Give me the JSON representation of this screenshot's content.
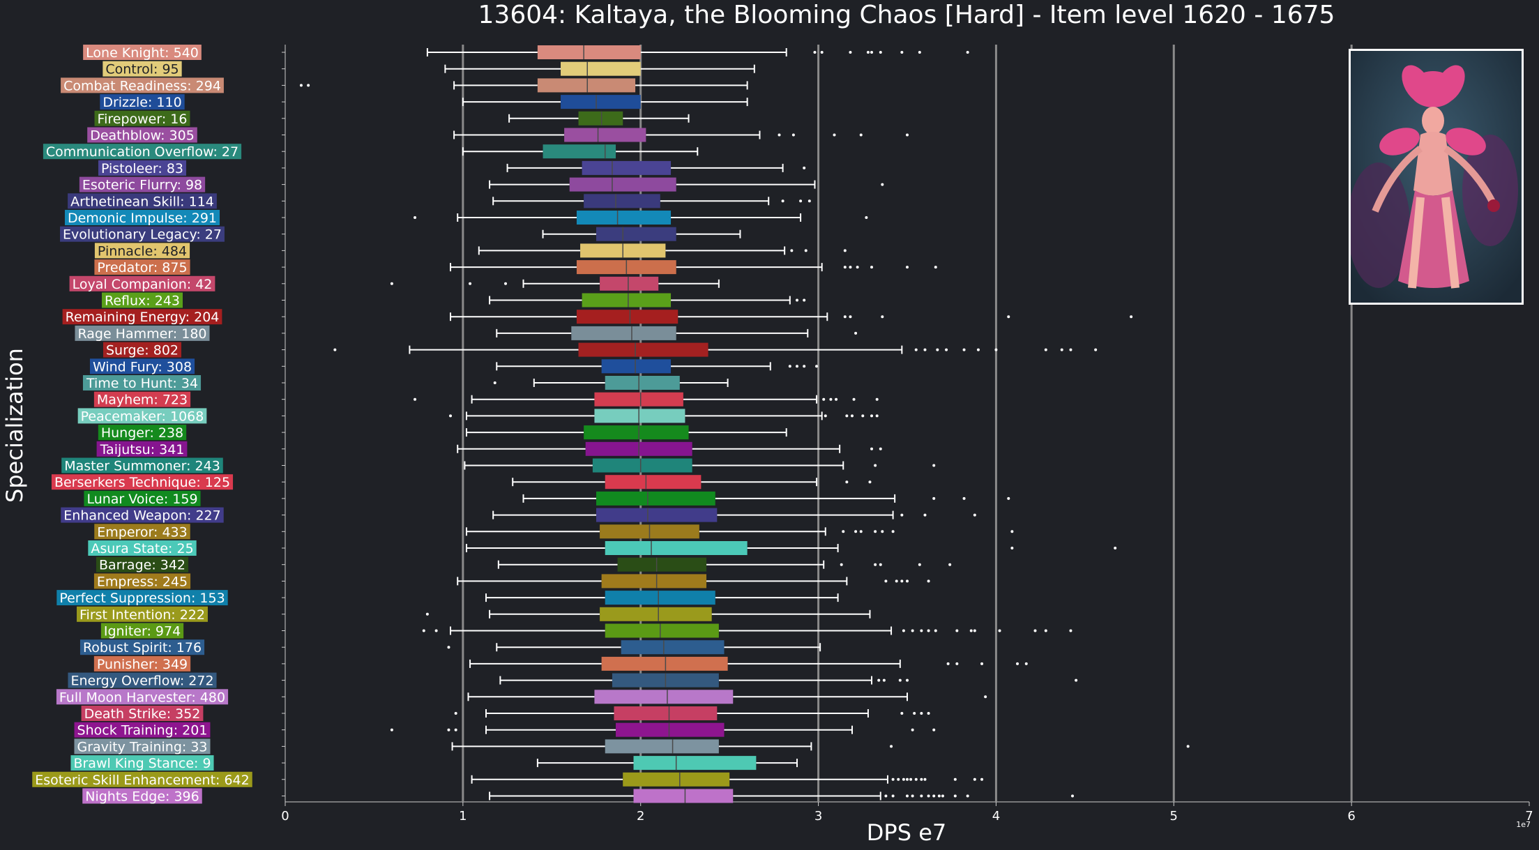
{
  "chart_data": {
    "type": "boxplot",
    "orientation": "horizontal",
    "title": "13604: Kaltaya, the Blooming Chaos [Hard] - Item level 1620 - 1675",
    "xlabel": "DPS e7",
    "ylabel": "Specialization",
    "x_offset_label": "1e7",
    "xlim": [
      0,
      7
    ],
    "xticks": [
      "0",
      "1",
      "2",
      "3",
      "4",
      "5",
      "6",
      "7"
    ],
    "grid": "vertical",
    "portrait_icon": "boss-portrait-pink-flower-demon",
    "colors": {
      "background": "#1f2126",
      "grid": "#8a8a8a",
      "text": "#ffffff",
      "whisker": "#ffffff"
    },
    "series": [
      {
        "label": "Lone Knight: 540",
        "color": "#d98a7e",
        "whislo": 0.8,
        "q1": 1.42,
        "med": 1.68,
        "q3": 2.0,
        "whishi": 2.82,
        "fliers": [
          2.98,
          3.02,
          3.18,
          3.28,
          3.3,
          3.35,
          3.47,
          3.57,
          3.84
        ]
      },
      {
        "label": "Control: 95",
        "color": "#e2cc7a",
        "whislo": 0.9,
        "q1": 1.55,
        "med": 1.7,
        "q3": 2.0,
        "whishi": 2.64,
        "fliers": []
      },
      {
        "label": "Combat Readiness: 294",
        "color": "#c98a74",
        "whislo": 0.95,
        "q1": 1.42,
        "med": 1.7,
        "q3": 1.97,
        "whishi": 2.6,
        "fliers": [
          0.09,
          0.13
        ]
      },
      {
        "label": "Drizzle: 110",
        "color": "#1f4d99",
        "whislo": 1.0,
        "q1": 1.55,
        "med": 1.75,
        "q3": 2.0,
        "whishi": 2.6,
        "fliers": []
      },
      {
        "label": "Firepower: 16",
        "color": "#3d6b1a",
        "whislo": 1.26,
        "q1": 1.65,
        "med": 1.78,
        "q3": 1.9,
        "whishi": 2.27,
        "fliers": []
      },
      {
        "label": "Deathblow: 305",
        "color": "#9a4fa0",
        "whislo": 0.95,
        "q1": 1.57,
        "med": 1.76,
        "q3": 2.03,
        "whishi": 2.67,
        "fliers": [
          2.78,
          2.86,
          3.09,
          3.24,
          3.5
        ]
      },
      {
        "label": "Communication Overflow: 27",
        "color": "#2a8a7d",
        "whislo": 1.0,
        "q1": 1.45,
        "med": 1.8,
        "q3": 1.86,
        "whishi": 2.32,
        "fliers": []
      },
      {
        "label": "Pistoleer: 83",
        "color": "#4a4494",
        "whislo": 1.25,
        "q1": 1.67,
        "med": 1.84,
        "q3": 2.17,
        "whishi": 2.8,
        "fliers": [
          2.92
        ]
      },
      {
        "label": "Esoteric Flurry: 98",
        "color": "#8e4a9e",
        "whislo": 1.15,
        "q1": 1.6,
        "med": 1.84,
        "q3": 2.2,
        "whishi": 2.98,
        "fliers": [
          3.36
        ]
      },
      {
        "label": "Arthetinean Skill: 114",
        "color": "#3a3a7c",
        "whislo": 1.17,
        "q1": 1.68,
        "med": 1.86,
        "q3": 2.11,
        "whishi": 2.72,
        "fliers": [
          2.8,
          2.9,
          2.95
        ]
      },
      {
        "label": "Demonic Impulse: 291",
        "color": "#1389b8",
        "whislo": 0.97,
        "q1": 1.64,
        "med": 1.87,
        "q3": 2.17,
        "whishi": 2.9,
        "fliers": [
          0.73,
          3.27
        ]
      },
      {
        "label": "Evolutionary Legacy: 27",
        "color": "#3b3d7e",
        "whislo": 1.45,
        "q1": 1.75,
        "med": 1.9,
        "q3": 2.2,
        "whishi": 2.56,
        "fliers": []
      },
      {
        "label": "Pinnacle: 484",
        "color": "#e1c56e",
        "whislo": 1.09,
        "q1": 1.66,
        "med": 1.9,
        "q3": 2.14,
        "whishi": 2.81,
        "fliers": [
          2.85,
          2.93,
          3.15
        ]
      },
      {
        "label": "Predator: 875",
        "color": "#cc6f4c",
        "whislo": 0.93,
        "q1": 1.64,
        "med": 1.92,
        "q3": 2.2,
        "whishi": 3.02,
        "fliers": [
          3.15,
          3.18,
          3.22,
          3.3,
          3.5,
          3.66
        ]
      },
      {
        "label": "Loyal Companion: 42",
        "color": "#c4476b",
        "whislo": 1.34,
        "q1": 1.77,
        "med": 1.93,
        "q3": 2.1,
        "whishi": 2.44,
        "fliers": [
          0.6,
          1.04,
          1.24
        ]
      },
      {
        "label": "Reflux: 243",
        "color": "#5aa01a",
        "whislo": 1.15,
        "q1": 1.67,
        "med": 1.93,
        "q3": 2.17,
        "whishi": 2.84,
        "fliers": [
          2.88,
          2.92
        ]
      },
      {
        "label": "Remaining Energy: 204",
        "color": "#a51f1f",
        "whislo": 0.93,
        "q1": 1.64,
        "med": 1.94,
        "q3": 2.21,
        "whishi": 3.05,
        "fliers": [
          3.15,
          3.18,
          3.36,
          4.07,
          4.76
        ]
      },
      {
        "label": "Rage Hammer: 180",
        "color": "#7a8e99",
        "whislo": 1.19,
        "q1": 1.61,
        "med": 1.95,
        "q3": 2.2,
        "whishi": 2.94,
        "fliers": [
          3.21
        ]
      },
      {
        "label": "Surge: 802",
        "color": "#a32121",
        "whislo": 0.7,
        "q1": 1.65,
        "med": 1.97,
        "q3": 2.38,
        "whishi": 3.47,
        "fliers": [
          0.28,
          3.55,
          3.6,
          3.67,
          3.72,
          3.82,
          3.9,
          4.0,
          4.28,
          4.37,
          4.42,
          4.56
        ]
      },
      {
        "label": "Wind Fury: 308",
        "color": "#1f4f9c",
        "whislo": 1.19,
        "q1": 1.78,
        "med": 1.97,
        "q3": 2.17,
        "whishi": 2.73,
        "fliers": [
          2.84,
          2.88,
          2.92,
          2.99
        ]
      },
      {
        "label": "Time to Hunt: 34",
        "color": "#4d9b98",
        "whislo": 1.4,
        "q1": 1.8,
        "med": 1.99,
        "q3": 2.22,
        "whishi": 2.49,
        "fliers": [
          1.18
        ]
      },
      {
        "label": "Mayhem: 723",
        "color": "#d33d50",
        "whislo": 1.05,
        "q1": 1.74,
        "med": 2.0,
        "q3": 2.24,
        "whishi": 2.99,
        "fliers": [
          0.73,
          3.03,
          3.07,
          3.1,
          3.2,
          3.33
        ]
      },
      {
        "label": "Peacemaker: 1068",
        "color": "#77cdbe",
        "whislo": 1.02,
        "q1": 1.74,
        "med": 1.99,
        "q3": 2.25,
        "whishi": 3.02,
        "fliers": [
          0.93,
          3.04,
          3.16,
          3.19,
          3.25,
          3.3,
          3.33
        ]
      },
      {
        "label": "Hunger: 238",
        "color": "#158a1d",
        "whislo": 1.02,
        "q1": 1.68,
        "med": 1.99,
        "q3": 2.27,
        "whishi": 2.82,
        "fliers": []
      },
      {
        "label": "Taijutsu: 341",
        "color": "#86158f",
        "whislo": 0.97,
        "q1": 1.69,
        "med": 1.99,
        "q3": 2.29,
        "whishi": 3.12,
        "fliers": [
          3.3,
          3.35
        ]
      },
      {
        "label": "Master Summoner: 243",
        "color": "#1f857a",
        "whislo": 1.01,
        "q1": 1.73,
        "med": 2.0,
        "q3": 2.29,
        "whishi": 3.14,
        "fliers": [
          3.32,
          3.65
        ]
      },
      {
        "label": "Berserkers Technique: 125",
        "color": "#d93a4e",
        "whislo": 1.28,
        "q1": 1.8,
        "med": 2.03,
        "q3": 2.34,
        "whishi": 2.99,
        "fliers": [
          3.16,
          3.29
        ]
      },
      {
        "label": "Lunar Voice: 159",
        "color": "#118a1f",
        "whislo": 1.34,
        "q1": 1.75,
        "med": 2.04,
        "q3": 2.42,
        "whishi": 3.43,
        "fliers": [
          3.65,
          3.82,
          4.07
        ]
      },
      {
        "label": "Enhanced Weapon: 227",
        "color": "#413c8a",
        "whislo": 1.17,
        "q1": 1.75,
        "med": 2.04,
        "q3": 2.43,
        "whishi": 3.42,
        "fliers": [
          3.47,
          3.6,
          3.88
        ]
      },
      {
        "label": "Emperor: 433",
        "color": "#9b7b1d",
        "whislo": 1.02,
        "q1": 1.77,
        "med": 2.05,
        "q3": 2.33,
        "whishi": 3.04,
        "fliers": [
          3.14,
          3.21,
          3.24,
          3.32,
          3.36,
          3.42,
          4.09
        ]
      },
      {
        "label": "Asura State: 25",
        "color": "#4cc9b8",
        "whislo": 1.02,
        "q1": 1.8,
        "med": 2.06,
        "q3": 2.6,
        "whishi": 3.11,
        "fliers": [
          4.09,
          4.67
        ]
      },
      {
        "label": "Barrage: 342",
        "color": "#2a4d16",
        "whislo": 1.2,
        "q1": 1.87,
        "med": 2.09,
        "q3": 2.37,
        "whishi": 3.03,
        "fliers": [
          3.13,
          3.32,
          3.35,
          3.57,
          3.74
        ]
      },
      {
        "label": "Empress: 245",
        "color": "#a07b1c",
        "whislo": 0.97,
        "q1": 1.78,
        "med": 2.09,
        "q3": 2.37,
        "whishi": 3.16,
        "fliers": [
          3.38,
          3.44,
          3.47,
          3.5,
          3.62
        ]
      },
      {
        "label": "Perfect Suppression: 153",
        "color": "#1080aa",
        "whislo": 1.13,
        "q1": 1.8,
        "med": 2.1,
        "q3": 2.42,
        "whishi": 3.11,
        "fliers": []
      },
      {
        "label": "First Intention: 222",
        "color": "#9a9a1c",
        "whislo": 1.15,
        "q1": 1.77,
        "med": 2.1,
        "q3": 2.4,
        "whishi": 3.29,
        "fliers": [
          0.8
        ]
      },
      {
        "label": "Igniter: 974",
        "color": "#5b9a15",
        "whislo": 0.93,
        "q1": 1.8,
        "med": 2.11,
        "q3": 2.44,
        "whishi": 3.41,
        "fliers": [
          0.78,
          0.85,
          3.48,
          3.53,
          3.58,
          3.62,
          3.66,
          3.78,
          3.86,
          3.88,
          4.02,
          4.22,
          4.28,
          4.42
        ]
      },
      {
        "label": "Robust Spirit: 176",
        "color": "#2d5d8f",
        "whislo": 1.19,
        "q1": 1.89,
        "med": 2.13,
        "q3": 2.47,
        "whishi": 3.01,
        "fliers": [
          0.92
        ]
      },
      {
        "label": "Punisher: 349",
        "color": "#d0704f",
        "whislo": 1.04,
        "q1": 1.78,
        "med": 2.14,
        "q3": 2.49,
        "whishi": 3.46,
        "fliers": [
          3.73,
          3.78,
          3.92,
          4.12,
          4.17
        ]
      },
      {
        "label": "Energy Overflow: 272",
        "color": "#34597f",
        "whislo": 1.21,
        "q1": 1.84,
        "med": 2.14,
        "q3": 2.44,
        "whishi": 3.3,
        "fliers": [
          3.34,
          3.37,
          3.46,
          3.5,
          4.45
        ]
      },
      {
        "label": "Full Moon Harvester: 480",
        "color": "#b878c9",
        "whislo": 1.03,
        "q1": 1.74,
        "med": 2.15,
        "q3": 2.52,
        "whishi": 3.5,
        "fliers": [
          3.94
        ]
      },
      {
        "label": "Death Strike: 352",
        "color": "#c63f63",
        "whislo": 1.13,
        "q1": 1.85,
        "med": 2.16,
        "q3": 2.43,
        "whishi": 3.28,
        "fliers": [
          0.96,
          3.47,
          3.54,
          3.58,
          3.62
        ]
      },
      {
        "label": "Shock Training: 201",
        "color": "#8e158f",
        "whislo": 1.13,
        "q1": 1.86,
        "med": 2.16,
        "q3": 2.47,
        "whishi": 3.19,
        "fliers": [
          0.6,
          0.92,
          0.96,
          3.53,
          3.65
        ]
      },
      {
        "label": "Gravity Training: 33",
        "color": "#7d93a0",
        "whislo": 0.94,
        "q1": 1.8,
        "med": 2.18,
        "q3": 2.44,
        "whishi": 2.96,
        "fliers": [
          3.41,
          5.08
        ]
      },
      {
        "label": "Brawl King Stance: 9",
        "color": "#4ec9b3",
        "whislo": 1.42,
        "q1": 1.96,
        "med": 2.2,
        "q3": 2.65,
        "whishi": 2.88,
        "fliers": []
      },
      {
        "label": "Esoteric Skill Enhancement: 642",
        "color": "#9b9a1a",
        "whislo": 1.05,
        "q1": 1.9,
        "med": 2.22,
        "q3": 2.5,
        "whishi": 3.39,
        "fliers": [
          3.42,
          3.45,
          3.48,
          3.5,
          3.52,
          3.55,
          3.58,
          3.6,
          3.77,
          3.88,
          3.92
        ]
      },
      {
        "label": "Nights Edge: 396",
        "color": "#be72c9",
        "whislo": 1.15,
        "q1": 1.96,
        "med": 2.25,
        "q3": 2.52,
        "whishi": 3.35,
        "fliers": [
          3.38,
          3.42,
          3.5,
          3.53,
          3.58,
          3.62,
          3.65,
          3.68,
          3.7,
          3.77,
          3.84,
          4.43
        ]
      }
    ]
  }
}
